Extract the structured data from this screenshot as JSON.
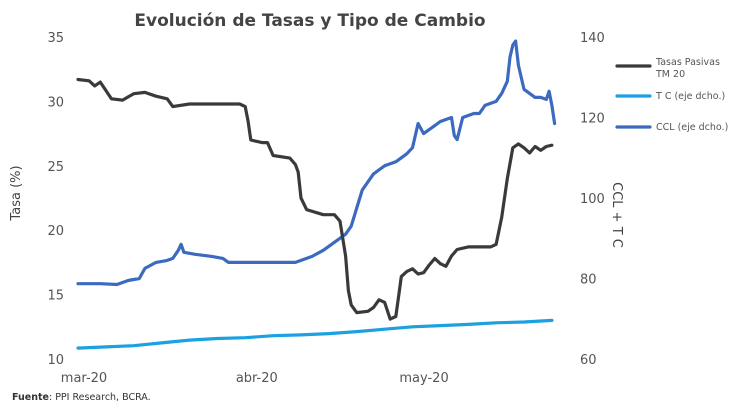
{
  "chart_data": {
    "type": "line",
    "title": "Evolución de Tasas y Tipo de Cambio",
    "ylabel_left": "Tasa (%)",
    "ylabel_right": "CCL + T C",
    "y_left": {
      "min": 10,
      "max": 35,
      "ticks": [
        "10",
        "15",
        "20",
        "25",
        "30",
        "35"
      ]
    },
    "y_right": {
      "min": 60,
      "max": 140,
      "ticks": [
        "60",
        "80",
        "100",
        "120",
        "140"
      ]
    },
    "x_ticks": [
      "mar-20",
      "abr-20",
      "may-20"
    ],
    "x_tick_values": [
      0,
      31,
      61
    ],
    "x_range": [
      0,
      87
    ],
    "legend_position": "right",
    "source_label": "Fuente",
    "source_text": ": PPI Research, BCRA.",
    "series": [
      {
        "name": "Tasas Pasivas TM 20",
        "legend_lines": [
          "Tasas Pasivas",
          "TM 20"
        ],
        "axis": "left",
        "color": "#3a3a3a",
        "points": [
          [
            0,
            31.7
          ],
          [
            2,
            31.6
          ],
          [
            3,
            31.2
          ],
          [
            4,
            31.5
          ],
          [
            6,
            30.2
          ],
          [
            8,
            30.1
          ],
          [
            10,
            30.6
          ],
          [
            12,
            30.7
          ],
          [
            14,
            30.4
          ],
          [
            16,
            30.2
          ],
          [
            17,
            29.6
          ],
          [
            20,
            29.8
          ],
          [
            24,
            29.8
          ],
          [
            29,
            29.8
          ],
          [
            30,
            29.6
          ],
          [
            30.5,
            28.5
          ],
          [
            31,
            27
          ],
          [
            33,
            26.8
          ],
          [
            34,
            26.8
          ],
          [
            35,
            25.8
          ],
          [
            38,
            25.6
          ],
          [
            39,
            25.1
          ],
          [
            39.5,
            24.5
          ],
          [
            40,
            22.5
          ],
          [
            41,
            21.6
          ],
          [
            44,
            21.2
          ],
          [
            46,
            21.2
          ],
          [
            47,
            20.7
          ],
          [
            48,
            18
          ],
          [
            48.5,
            15.3
          ],
          [
            49,
            14.2
          ],
          [
            50,
            13.6
          ],
          [
            52,
            13.7
          ],
          [
            53,
            14
          ],
          [
            54,
            14.6
          ],
          [
            55,
            14.4
          ],
          [
            56,
            13.1
          ],
          [
            57,
            13.3
          ],
          [
            57.5,
            14.8
          ],
          [
            58,
            16.4
          ],
          [
            59,
            16.8
          ],
          [
            60,
            17
          ],
          [
            61,
            16.6
          ],
          [
            62,
            16.7
          ],
          [
            63,
            17.3
          ],
          [
            64,
            17.8
          ],
          [
            65,
            17.4
          ],
          [
            66,
            17.2
          ],
          [
            67,
            18
          ],
          [
            68,
            18.5
          ],
          [
            70,
            18.7
          ],
          [
            74,
            18.7
          ],
          [
            75,
            18.9
          ],
          [
            76,
            21
          ],
          [
            77,
            24
          ],
          [
            78,
            26.4
          ],
          [
            79,
            26.7
          ],
          [
            80,
            26.4
          ],
          [
            81,
            26
          ],
          [
            82,
            26.5
          ],
          [
            83,
            26.2
          ],
          [
            84,
            26.5
          ],
          [
            85,
            26.6
          ]
        ]
      },
      {
        "name": "T C (eje dcho.)",
        "legend_lines": [
          "T C (eje dcho.)"
        ],
        "axis": "right",
        "color": "#1ba1e2",
        "points": [
          [
            0,
            62.7
          ],
          [
            5,
            63
          ],
          [
            10,
            63.3
          ],
          [
            15,
            64
          ],
          [
            20,
            64.7
          ],
          [
            25,
            65.1
          ],
          [
            30,
            65.3
          ],
          [
            35,
            65.8
          ],
          [
            40,
            66
          ],
          [
            45,
            66.3
          ],
          [
            50,
            66.8
          ],
          [
            55,
            67.4
          ],
          [
            60,
            68
          ],
          [
            65,
            68.3
          ],
          [
            70,
            68.6
          ],
          [
            75,
            69
          ],
          [
            80,
            69.2
          ],
          [
            85,
            69.6
          ]
        ]
      },
      {
        "name": "CCL (eje dcho.)",
        "legend_lines": [
          "CCL (eje dcho.)"
        ],
        "axis": "right",
        "color": "#3b6ac0",
        "points": [
          [
            0,
            78.7
          ],
          [
            4,
            78.7
          ],
          [
            7,
            78.5
          ],
          [
            9,
            79.5
          ],
          [
            11,
            80
          ],
          [
            12,
            82.5
          ],
          [
            14,
            84
          ],
          [
            16,
            84.5
          ],
          [
            17,
            85
          ],
          [
            18,
            87
          ],
          [
            18.5,
            88.5
          ],
          [
            19,
            86.5
          ],
          [
            21,
            86
          ],
          [
            24,
            85.5
          ],
          [
            26,
            85
          ],
          [
            27,
            84
          ],
          [
            30,
            84
          ],
          [
            36,
            84
          ],
          [
            39,
            84
          ],
          [
            40,
            84.5
          ],
          [
            42,
            85.5
          ],
          [
            44,
            87
          ],
          [
            46,
            89
          ],
          [
            48,
            91
          ],
          [
            49,
            93
          ],
          [
            50,
            97.5
          ],
          [
            51,
            102
          ],
          [
            52,
            104
          ],
          [
            53,
            106
          ],
          [
            55,
            108
          ],
          [
            57,
            109
          ],
          [
            58,
            110
          ],
          [
            59,
            111
          ],
          [
            60,
            112.5
          ],
          [
            61,
            118.5
          ],
          [
            62,
            116
          ],
          [
            63,
            117
          ],
          [
            64,
            118
          ],
          [
            65,
            119
          ],
          [
            66,
            119.5
          ],
          [
            67,
            120
          ],
          [
            67.5,
            115.5
          ],
          [
            68,
            114.5
          ],
          [
            69,
            120
          ],
          [
            71,
            121
          ],
          [
            72,
            121
          ],
          [
            73,
            123
          ],
          [
            74,
            123.5
          ],
          [
            75,
            124
          ],
          [
            76,
            126
          ],
          [
            77,
            129
          ],
          [
            77.5,
            135
          ],
          [
            78,
            138
          ],
          [
            78.5,
            139
          ],
          [
            79,
            133
          ],
          [
            80,
            127
          ],
          [
            82,
            125
          ],
          [
            83,
            125
          ],
          [
            84,
            124.5
          ],
          [
            84.5,
            126.5
          ],
          [
            85,
            123
          ],
          [
            85.5,
            118.5
          ]
        ]
      }
    ]
  }
}
